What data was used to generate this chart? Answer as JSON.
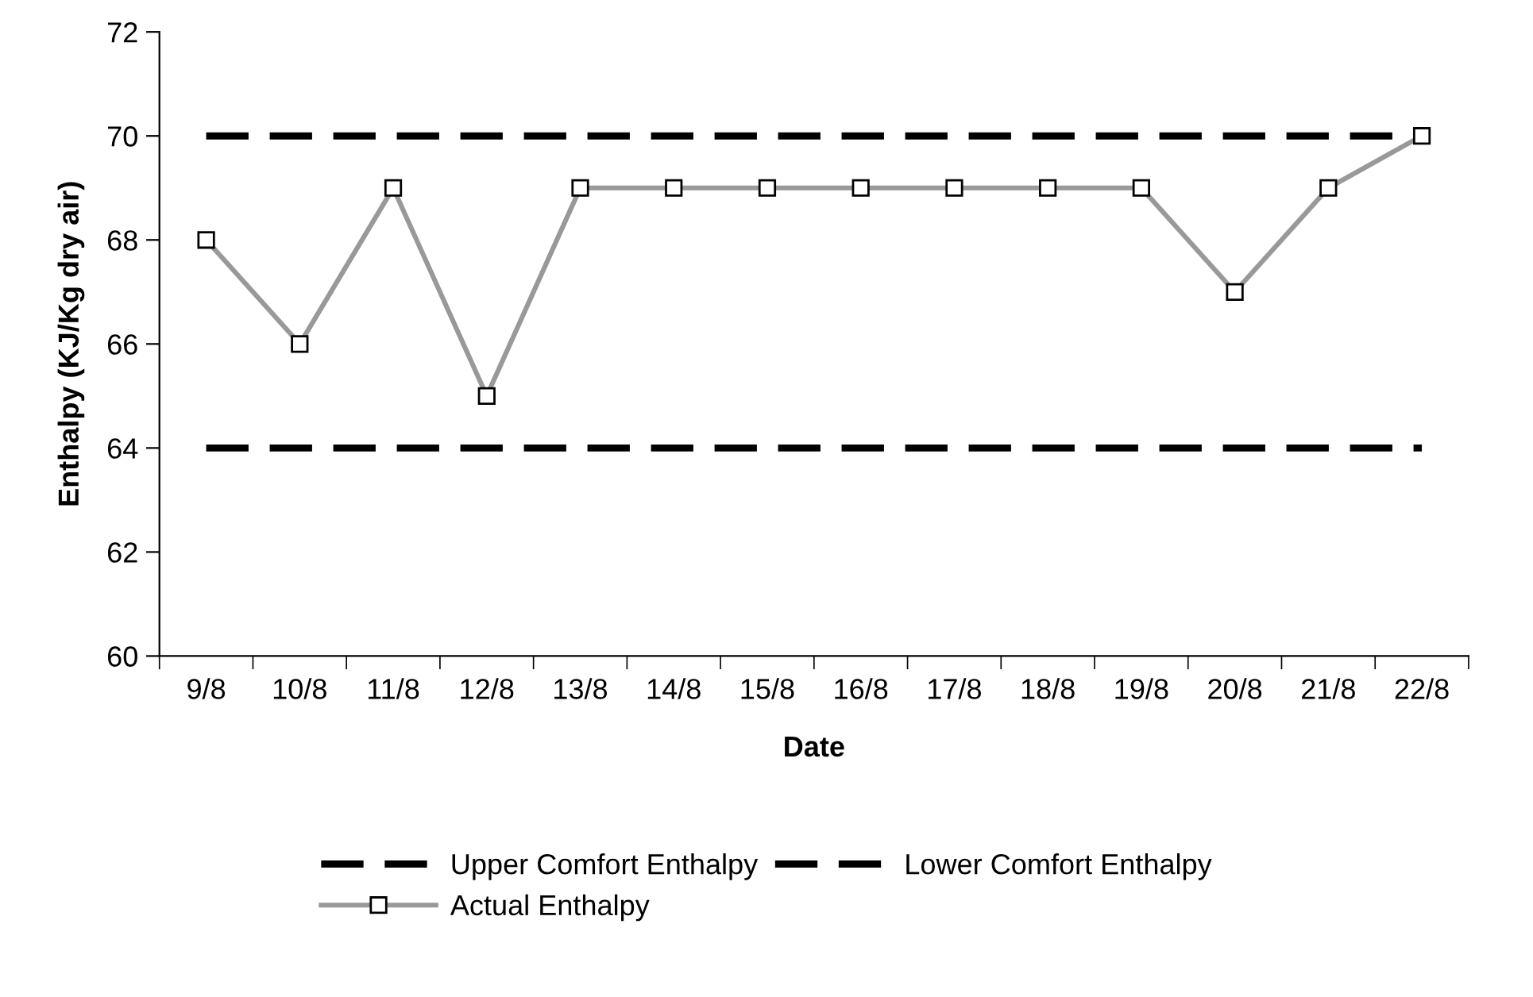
{
  "chart_data": {
    "type": "line",
    "xlabel": "Date",
    "ylabel": "Enthalpy (KJ/Kg dry air)",
    "categories": [
      "9/8",
      "10/8",
      "11/8",
      "12/8",
      "13/8",
      "14/8",
      "15/8",
      "16/8",
      "17/8",
      "18/8",
      "19/8",
      "20/8",
      "21/8",
      "22/8"
    ],
    "series": [
      {
        "name": "Upper Comfort Enthalpy",
        "color": "#000000",
        "line_style": "dashed",
        "marker": "none",
        "values": [
          70,
          70,
          70,
          70,
          70,
          70,
          70,
          70,
          70,
          70,
          70,
          70,
          70,
          70
        ]
      },
      {
        "name": "Lower Comfort Enthalpy",
        "color": "#000000",
        "line_style": "dashed",
        "marker": "none",
        "values": [
          64,
          64,
          64,
          64,
          64,
          64,
          64,
          64,
          64,
          64,
          64,
          64,
          64,
          64
        ]
      },
      {
        "name": "Actual Enthalpy",
        "color": "#999999",
        "line_style": "solid",
        "marker": "square",
        "values": [
          68,
          66,
          69,
          65,
          69,
          69,
          69,
          69,
          69,
          69,
          69,
          67,
          69,
          70
        ]
      }
    ],
    "ylim": [
      60,
      72
    ],
    "yticks": [
      60,
      62,
      64,
      66,
      68,
      70,
      72
    ],
    "grid": false,
    "legend": "bottom"
  }
}
